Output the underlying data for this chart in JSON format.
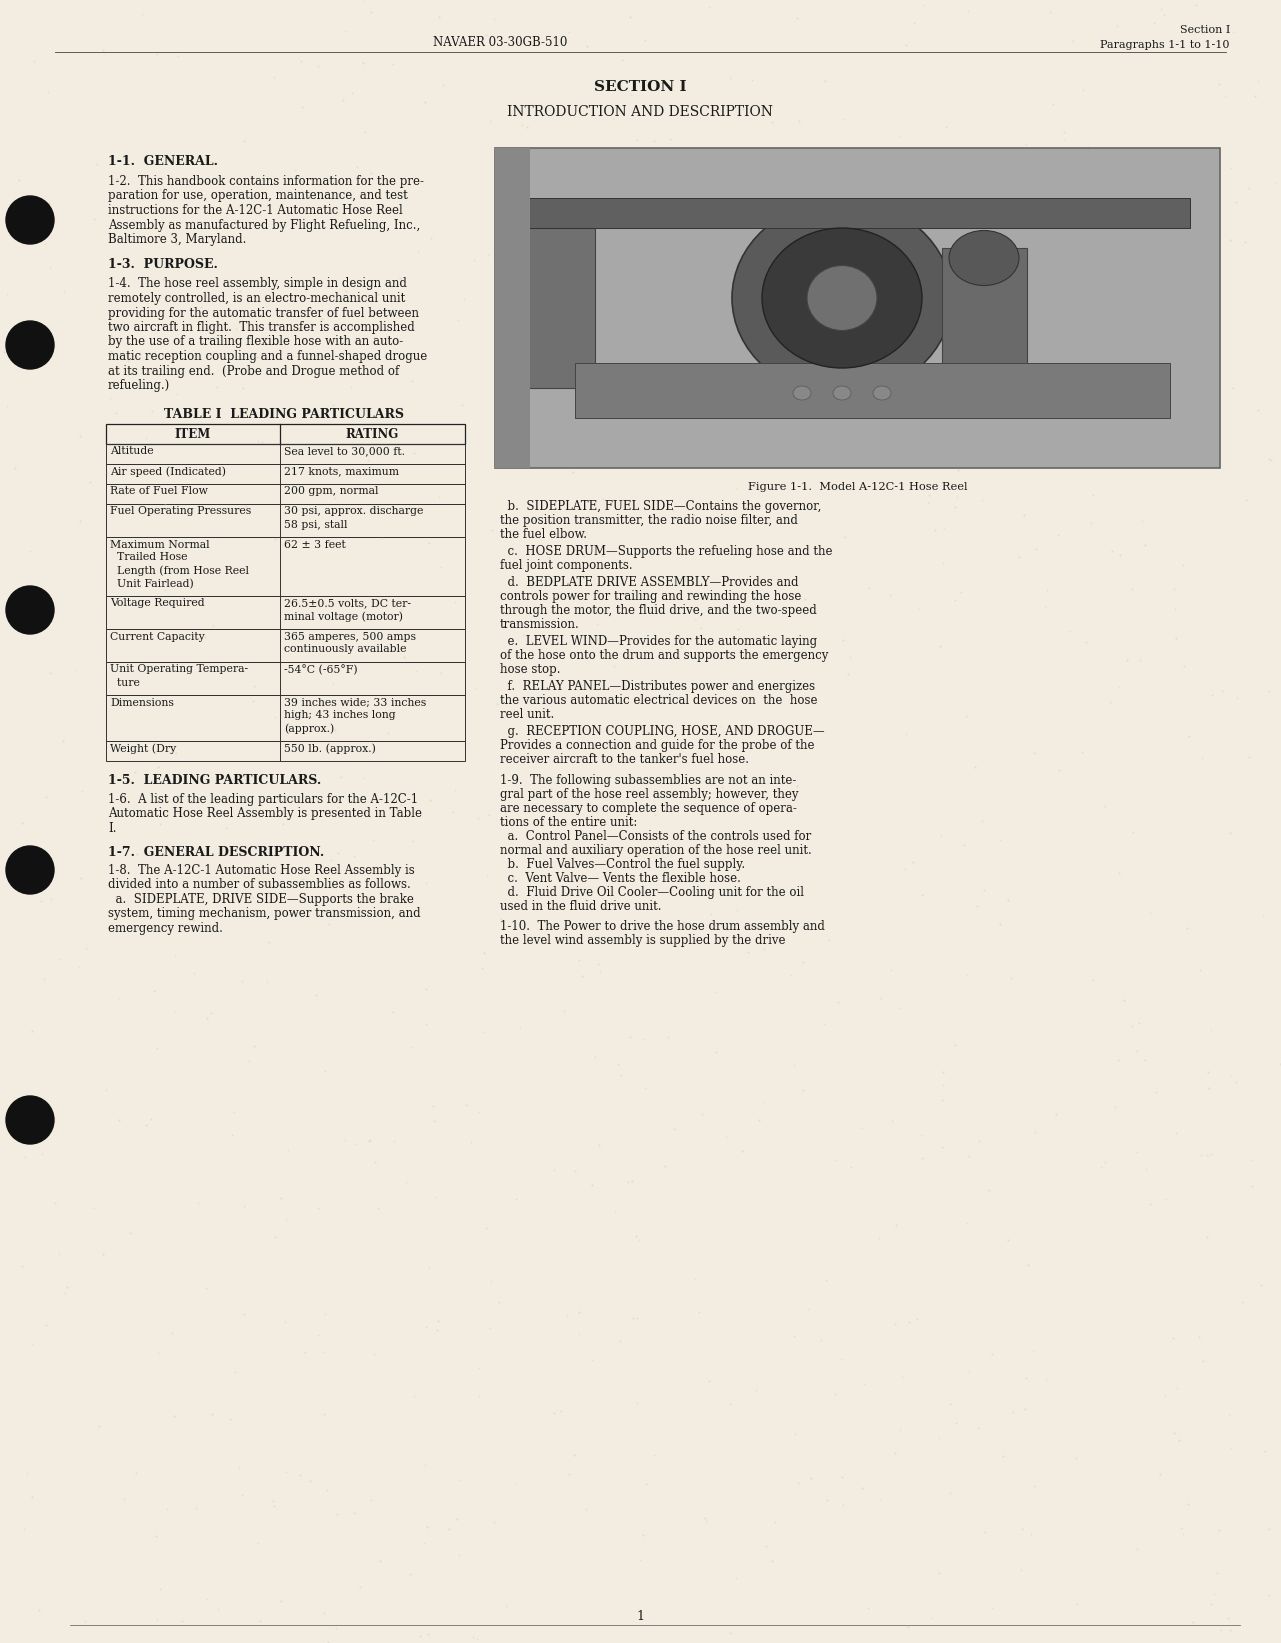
{
  "bg_color": "#f2ede0",
  "text_color": "#1a1a1a",
  "header_left": "NAVAER 03-30GB-510",
  "header_right_line1": "Section I",
  "header_right_line2": "Paragraphs 1-1 to 1-10",
  "section_title": "SECTION I",
  "section_subtitle": "INTRODUCTION AND DESCRIPTION",
  "para_1_1_header": "1-1.  GENERAL.",
  "para_1_2": "1-2.  This handbook contains information for the pre-\nparation for use, operation, maintenance, and test\ninstructions for the A-12C-1 Automatic Hose Reel\nAssembly as manufactured by Flight Refueling, Inc.,\nBaltimore 3, Maryland.",
  "para_1_3_header": "1-3.  PURPOSE.",
  "para_1_4": "1-4.  The hose reel assembly, simple in design and\nremotely controlled, is an electro-mechanical unit\nproviding for the automatic transfer of fuel between\ntwo aircraft in flight.  This transfer is accomplished\nby the use of a trailing flexible hose with an auto-\nmatic reception coupling and a funnel-shaped drogue\nat its trailing end.  (Probe and Drogue method of\nrefueling.)",
  "table_title": "TABLE I  LEADING PARTICULARS",
  "table_col1": "ITEM",
  "table_col2": "RATING",
  "table_rows": [
    [
      "Altitude",
      "Sea level to 30,000 ft."
    ],
    [
      "Air speed (Indicated)",
      "217 knots, maximum"
    ],
    [
      "Rate of Fuel Flow",
      "200 gpm, normal"
    ],
    [
      "Fuel Operating Pressures",
      "30 psi, approx. discharge\n58 psi, stall"
    ],
    [
      "Maximum Normal\n  Trailed Hose\n  Length (from Hose Reel\n  Unit Fairlead)",
      "62 ± 3 feet"
    ],
    [
      "Voltage Required",
      "26.5±0.5 volts, DC ter-\nminal voltage (motor)"
    ],
    [
      "Current Capacity",
      "365 amperes, 500 amps\ncontinuously available"
    ],
    [
      "Unit Operating Tempera-\n  ture",
      "-54°C (-65°F)"
    ],
    [
      "Dimensions",
      "39 inches wide; 33 inches\nhigh; 43 inches long\n(approx.)"
    ],
    [
      "Weight (Dry",
      "550 lb. (approx.)"
    ]
  ],
  "figure_caption": "Figure 1-1.  Model A-12C-1 Hose Reel",
  "para_1_5_header": "1-5.  LEADING PARTICULARS.",
  "para_1_6": "1-6.  A list of the leading particulars for the A-12C-1\nAutomatic Hose Reel Assembly is presented in Table\nI.",
  "para_1_7_header": "1-7.  GENERAL DESCRIPTION.",
  "para_1_8_intro": "1-8.  The A-12C-1 Automatic Hose Reel Assembly is\ndivided into a number of subassemblies as follows.",
  "para_1_8a": "  a.  SIDEPLATE, DRIVE SIDE—Supports the brake\nsystem, timing mechanism, power transmission, and\nemergency rewind.",
  "right_col_b": "  b.  SIDEPLATE, FUEL SIDE—Contains the governor,\nthe position transmitter, the radio noise filter, and\nthe fuel elbow.",
  "right_col_c": "  c.  HOSE DRUM—Supports the refueling hose and the\nfuel joint components.",
  "right_col_d": "  d.  BEDPLATE DRIVE ASSEMBLY—Provides and\ncontrols power for trailing and rewinding the hose\nthrough the motor, the fluid drive, and the two-speed\ntransmission.",
  "right_col_e": "  e.  LEVEL WIND—Provides for the automatic laying\nof the hose onto the drum and supports the emergency\nhose stop.",
  "right_col_f": "  f.  RELAY PANEL—Distributes power and energizes\nthe various automatic electrical devices on  the  hose\nreel unit.",
  "right_col_g": "  g.  RECEPTION COUPLING, HOSE, AND DROGUE—\nProvides a connection and guide for the probe of the\nreceiver aircraft to the tanker's fuel hose.",
  "para_1_9": "1-9.  The following subassemblies are not an inte-\ngral part of the hose reel assembly; however, they\nare necessary to complete the sequence of opera-\ntions of the entire unit:\n  a.  Control Panel—Consists of the controls used for\nnormal and auxiliary operation of the hose reel unit.\n  b.  Fuel Valves—Control the fuel supply.\n  c.  Vent Valve— Vents the flexible hose.\n  d.  Fluid Drive Oil Cooler—Cooling unit for the oil\nused in the fluid drive unit.",
  "para_1_10": "1-10.  The Power to drive the hose drum assembly and\nthe level wind assembly is supplied by the drive",
  "page_number": "1"
}
